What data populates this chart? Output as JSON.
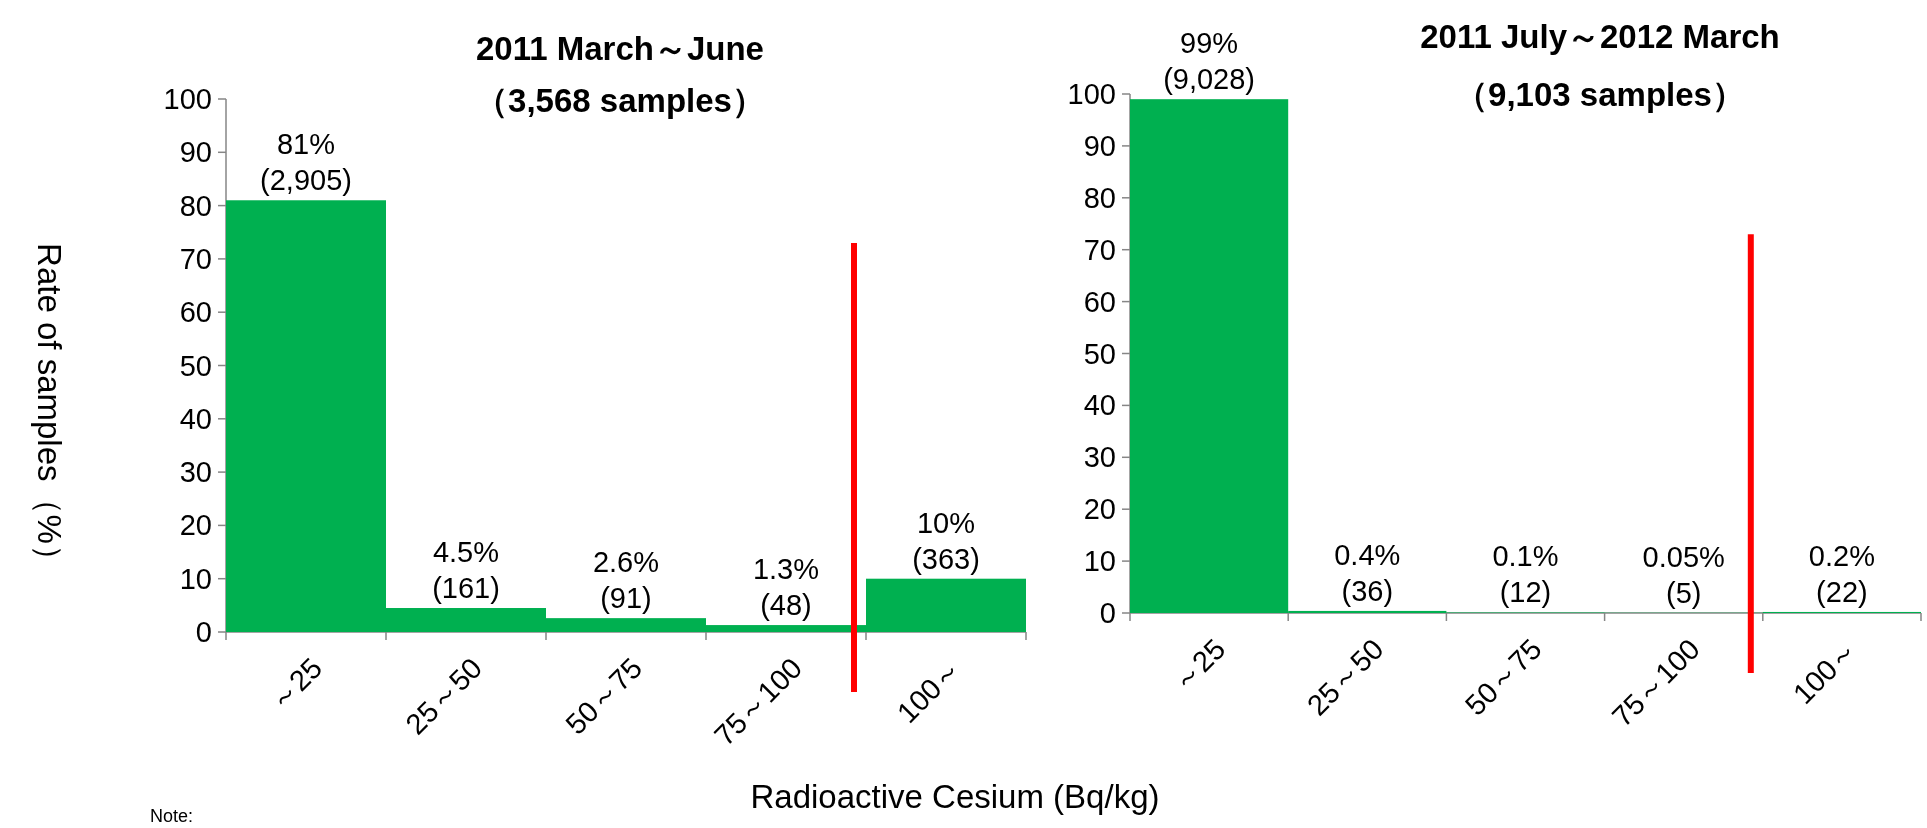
{
  "chart_data": [
    {
      "type": "bar",
      "title": "2011 March～June",
      "subtitle": "（3,568 samples）",
      "ylabel": "Rate of samples（%）",
      "xlabel": "Radioactive Cesium (Bq/kg)",
      "categories": [
        "～25",
        "25～50",
        "50～75",
        "75～100",
        "100～"
      ],
      "values": [
        81,
        4.5,
        2.6,
        1.3,
        10
      ],
      "color": "#00b050",
      "value_labels": [
        "81%\n(2,905)",
        "4.5%\n(161)",
        "2.6%\n(91)",
        "1.3%\n(48)",
        "10%\n(363)"
      ],
      "ylim": [
        0,
        100
      ],
      "yticks": [
        0,
        10,
        20,
        30,
        40,
        50,
        60,
        70,
        80,
        90,
        100
      ],
      "ref_lines": [
        {
          "axis": "x",
          "value": "100～",
          "color": "#ff0000"
        }
      ],
      "annotations": [
        "Note:"
      ]
    },
    {
      "type": "bar",
      "title": "2011 July～2012 March",
      "subtitle": "（9,103 samples）",
      "categories": [
        "～25",
        "25～50",
        "50～75",
        "75～100",
        "100～"
      ],
      "values": [
        99,
        0.4,
        0.1,
        0.05,
        0.2
      ],
      "color": "#00b050",
      "value_labels": [
        "99%\n(9,028)",
        "0.4%\n(36)",
        "0.1%\n(12)",
        "0.05%\n(5)",
        "0.2%\n(22)"
      ],
      "ylim": [
        0,
        100
      ],
      "yticks": [
        0,
        10,
        20,
        30,
        40,
        50,
        60,
        70,
        80,
        90,
        100
      ],
      "ref_lines": [
        {
          "axis": "x",
          "value": "100～",
          "color": "#ff0000"
        }
      ]
    }
  ]
}
